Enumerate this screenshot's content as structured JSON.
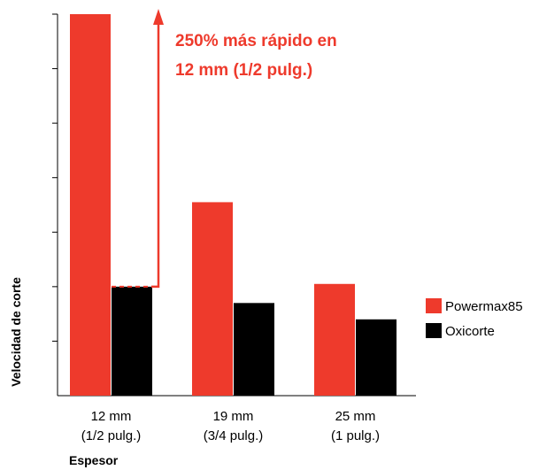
{
  "chart_data": {
    "type": "bar",
    "title": "",
    "xlabel": "Espesor",
    "ylabel": "Velocidad de corte",
    "categories": [
      [
        "12 mm",
        "(1/2 pulg.)"
      ],
      [
        "19 mm",
        "(3/4 pulg.)"
      ],
      [
        "25 mm",
        "(1 pulg.)"
      ]
    ],
    "series": [
      {
        "name": "Powermax85",
        "color": "#ee3a2c",
        "values": [
          7.0,
          3.55,
          2.05
        ]
      },
      {
        "name": "Oxicorte",
        "color": "#000000",
        "values": [
          2.0,
          1.7,
          1.4
        ]
      }
    ],
    "ylim": [
      0,
      7
    ],
    "yticks_count": 7,
    "y_tick_labels": false,
    "grid": false,
    "legend_position": "right",
    "annotation": {
      "lines": [
        "250% más rápido en",
        "12 mm (1/2 pulg.)"
      ],
      "color": "#ee3a2c",
      "category_index": 0,
      "from_value": 2.0,
      "to_value": 7.0
    }
  }
}
